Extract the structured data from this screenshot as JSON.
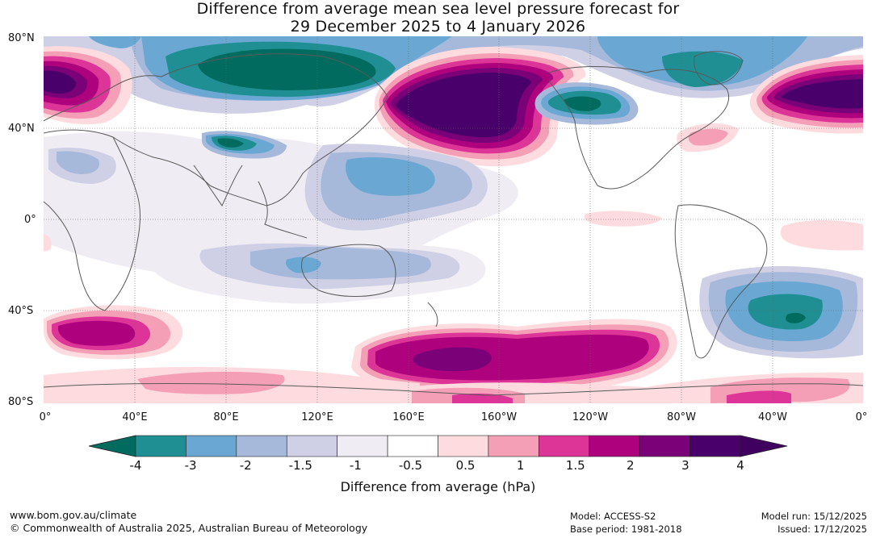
{
  "title_line1": "Difference from average mean sea level pressure forecast for",
  "title_line2": "29 December 2025 to 4 January 2026",
  "lat_labels": [
    "80°N",
    "40°N",
    "0°",
    "40°S",
    "80°S"
  ],
  "lon_labels": [
    "0°",
    "40°E",
    "80°E",
    "120°E",
    "160°E",
    "160°W",
    "120°W",
    "80°W",
    "40°W",
    "0°"
  ],
  "colorbar": {
    "ticks": [
      "-4",
      "-3",
      "-2",
      "-1.5",
      "-1",
      "-0.5",
      "0.5",
      "1",
      "1.5",
      "2",
      "3",
      "4"
    ],
    "colors": [
      "#1f8f94",
      "#6aa8d3",
      "#a6b9da",
      "#cfd0e6",
      "#f0ecf3",
      "#ffffff",
      "#fddbdf",
      "#f59fb7",
      "#dd3497",
      "#ae017e",
      "#7a0177",
      "#4a006a"
    ],
    "extend_low_color": "#006b5e",
    "extend_high_color": "#3f0060",
    "label": "Difference from average (hPa)"
  },
  "footer": {
    "website": "www.bom.gov.au/climate",
    "copyright": "© Commonwealth of Australia 2025, Australian Bureau of Meteorology",
    "model": "Model: ACCESS-S2",
    "base_period": "Base period: 1981-2018",
    "model_run": "Model run: 15/12/2025",
    "issued": "Issued: 17/12/2025"
  }
}
